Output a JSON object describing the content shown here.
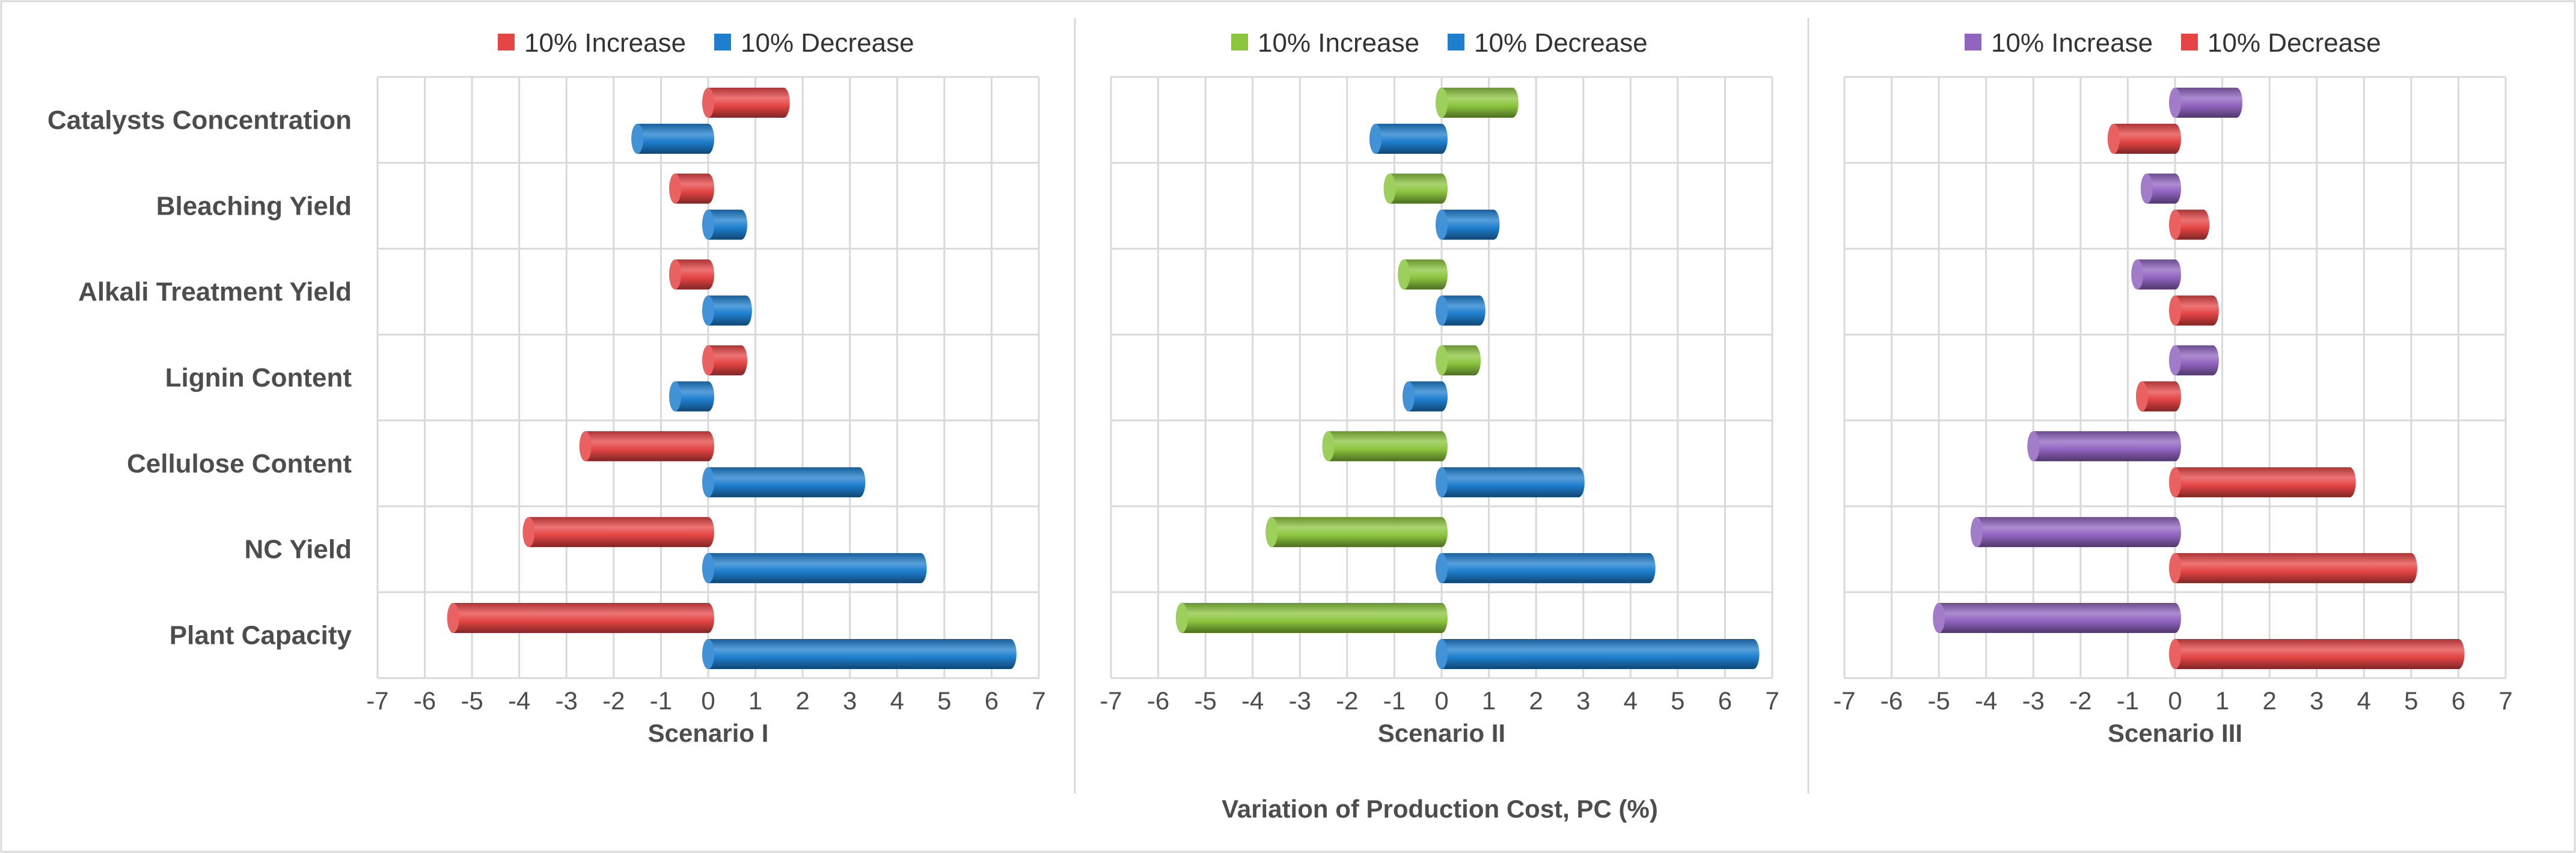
{
  "x_axis_title": "Variation of Production Cost, PC (%)",
  "colors": {
    "red": "#e64545",
    "blue": "#1f7fcf",
    "green": "#8cc63f",
    "purple": "#9164c0"
  },
  "chart_data": [
    {
      "type": "bar",
      "orientation": "horizontal",
      "title": "Scenario I",
      "xlabel": "Variation of Production Cost, PC (%)",
      "categories": [
        "Catalysts Concentration",
        "Bleaching Yield",
        "Alkali Treatment Yield",
        "Lignin Content",
        "Cellulose Content",
        "NC Yield",
        "Plant Capacity"
      ],
      "xlim": [
        -7,
        7
      ],
      "ticks": [
        -7,
        -6,
        -5,
        -4,
        -3,
        -2,
        -1,
        0,
        1,
        2,
        3,
        4,
        5,
        6,
        7
      ],
      "legend_position": "top",
      "series": [
        {
          "name": "10% Increase",
          "color": "#e64545",
          "values": [
            1.6,
            -0.7,
            -0.7,
            0.7,
            -2.6,
            -3.8,
            -5.4
          ]
        },
        {
          "name": "10% Decrease",
          "color": "#1f7fcf",
          "values": [
            -1.5,
            0.7,
            0.8,
            -0.7,
            3.2,
            4.5,
            6.4
          ]
        }
      ]
    },
    {
      "type": "bar",
      "orientation": "horizontal",
      "title": "Scenario II",
      "xlabel": "Variation of Production Cost, PC (%)",
      "categories": [
        "Catalysts Concentration",
        "Bleaching Yield",
        "Alkali Treatment Yield",
        "Lignin Content",
        "Cellulose Content",
        "NC Yield",
        "Plant Capacity"
      ],
      "xlim": [
        -7,
        7
      ],
      "ticks": [
        -7,
        -6,
        -5,
        -4,
        -3,
        -2,
        -1,
        0,
        1,
        2,
        3,
        4,
        5,
        6,
        7
      ],
      "legend_position": "top",
      "series": [
        {
          "name": "10% Increase",
          "color": "#8cc63f",
          "values": [
            1.5,
            -1.1,
            -0.8,
            0.7,
            -2.4,
            -3.6,
            -5.5
          ]
        },
        {
          "name": "10% Decrease",
          "color": "#1f7fcf",
          "values": [
            -1.4,
            1.1,
            0.8,
            -0.7,
            2.9,
            4.4,
            6.6
          ]
        }
      ]
    },
    {
      "type": "bar",
      "orientation": "horizontal",
      "title": "Scenario III",
      "xlabel": "Variation of Production Cost, PC (%)",
      "categories": [
        "Catalysts Concentration",
        "Bleaching Yield",
        "Alkali Treatment Yield",
        "Lignin Content",
        "Cellulose Content",
        "NC Yield",
        "Plant Capacity"
      ],
      "xlim": [
        -7,
        7
      ],
      "ticks": [
        -7,
        -6,
        -5,
        -4,
        -3,
        -2,
        -1,
        0,
        1,
        2,
        3,
        4,
        5,
        6,
        7
      ],
      "legend_position": "top",
      "series": [
        {
          "name": "10% Increase",
          "color": "#9164c0",
          "values": [
            1.3,
            -0.6,
            -0.8,
            0.8,
            -3.0,
            -4.2,
            -5.0
          ]
        },
        {
          "name": "10% Decrease",
          "color": "#e64545",
          "values": [
            -1.3,
            0.6,
            0.8,
            -0.7,
            3.7,
            5.0,
            6.0
          ]
        }
      ]
    }
  ]
}
